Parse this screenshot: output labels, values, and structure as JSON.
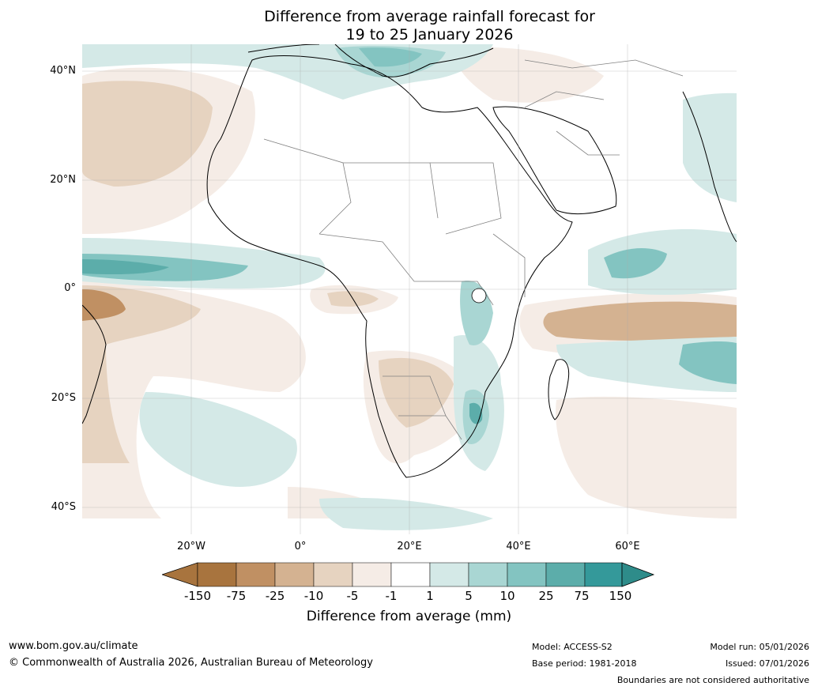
{
  "title": {
    "line1": "Difference from average rainfall forecast for",
    "line2": "19 to 25 January 2026"
  },
  "map": {
    "region": "Africa",
    "latitude_labels": [
      "40°N",
      "20°N",
      "0°",
      "20°S",
      "40°S"
    ],
    "longitude_labels": [
      "20°W",
      "0°",
      "20°E",
      "40°E",
      "60°E"
    ]
  },
  "colorbar": {
    "ticks": [
      "-150",
      "-75",
      "-25",
      "-10",
      "-5",
      "-1",
      "1",
      "5",
      "10",
      "25",
      "75",
      "150"
    ],
    "colors": [
      "#a8743e",
      "#c09063",
      "#d4b291",
      "#e6d3c0",
      "#f5ece6",
      "#ffffff",
      "#d4e9e7",
      "#a9d6d3",
      "#83c4c1",
      "#5cadaa",
      "#34999a",
      "#2e8c8a"
    ],
    "label": "Difference from average (mm)"
  },
  "footer": {
    "website": "www.bom.gov.au/climate",
    "copyright": "© Commonwealth of Australia 2026, Australian Bureau of Meteorology",
    "model": "Model: ACCESS-S2",
    "base_period": "Base period: 1981-2018",
    "model_run": "Model run: 05/01/2026",
    "issued": "Issued: 07/01/2026",
    "disclaimer": "Boundaries are not considered authoritative"
  }
}
